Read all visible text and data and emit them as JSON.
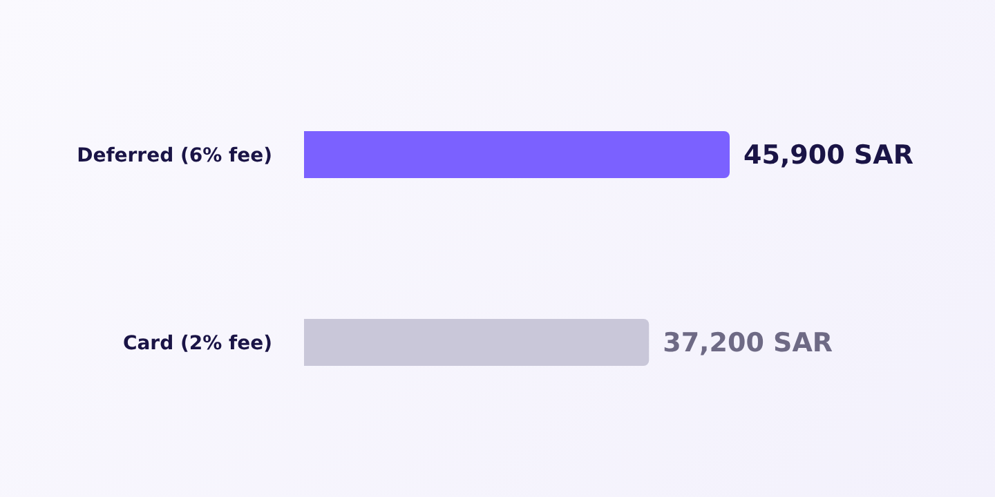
{
  "chart_data": {
    "type": "bar",
    "orientation": "horizontal",
    "categories": [
      "Deferred (6% fee)",
      "Card (2% fee)"
    ],
    "values": [
      45900,
      37200
    ],
    "colors": [
      "#7b61ff",
      "#c9c7d9"
    ],
    "value_labels": [
      "45,900 SAR",
      "37,200 SAR"
    ]
  }
}
